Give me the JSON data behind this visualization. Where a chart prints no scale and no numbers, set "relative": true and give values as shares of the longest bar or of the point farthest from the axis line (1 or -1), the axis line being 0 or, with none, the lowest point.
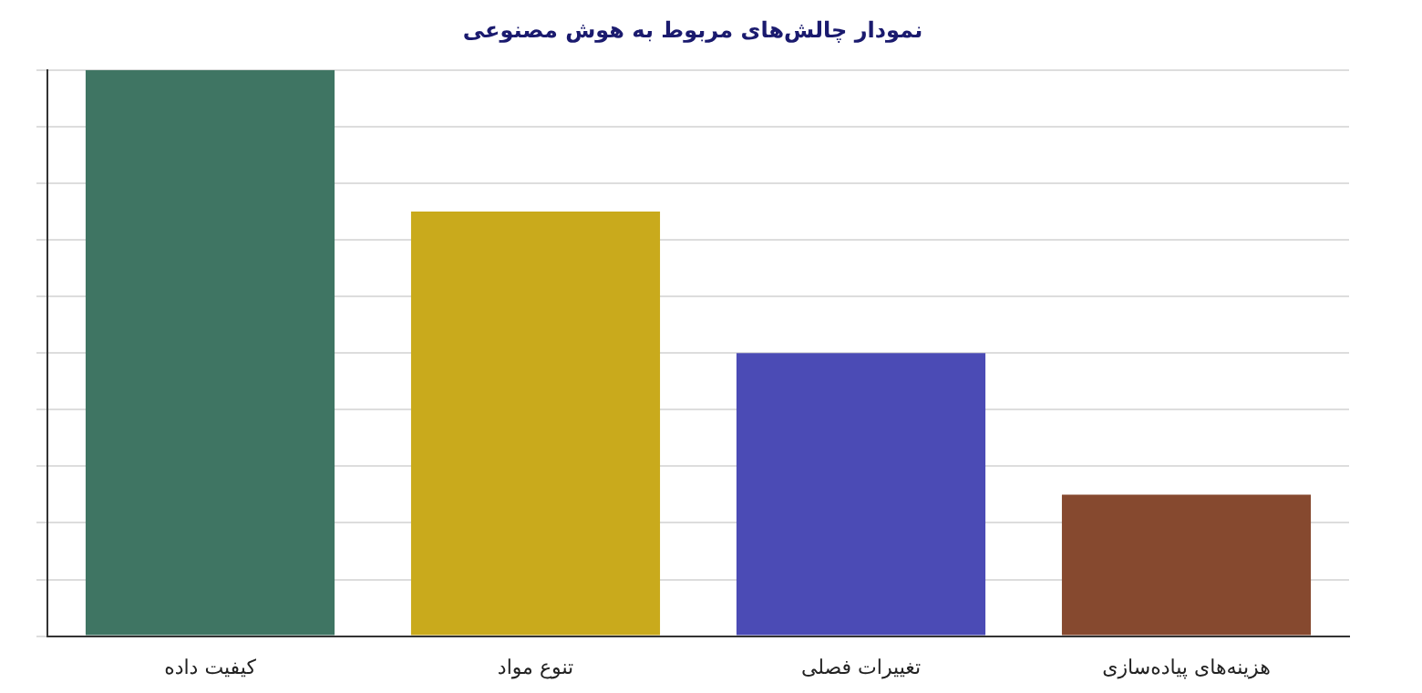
{
  "chart_data": {
    "type": "bar",
    "title": "نمودار چالش‌های مربوط به هوش مصنوعی",
    "relative": true,
    "grid": "y",
    "categories": [
      "کیفیت داده",
      "تنوع مواد",
      "تغییرات فصلی",
      "هزینه‌های پیاده‌سازی"
    ],
    "values": [
      1,
      0.75,
      0.5,
      0.25
    ],
    "colors": [
      "#3f7563",
      "#c9aa1c",
      "#4b4bb5",
      "#86492f"
    ]
  }
}
